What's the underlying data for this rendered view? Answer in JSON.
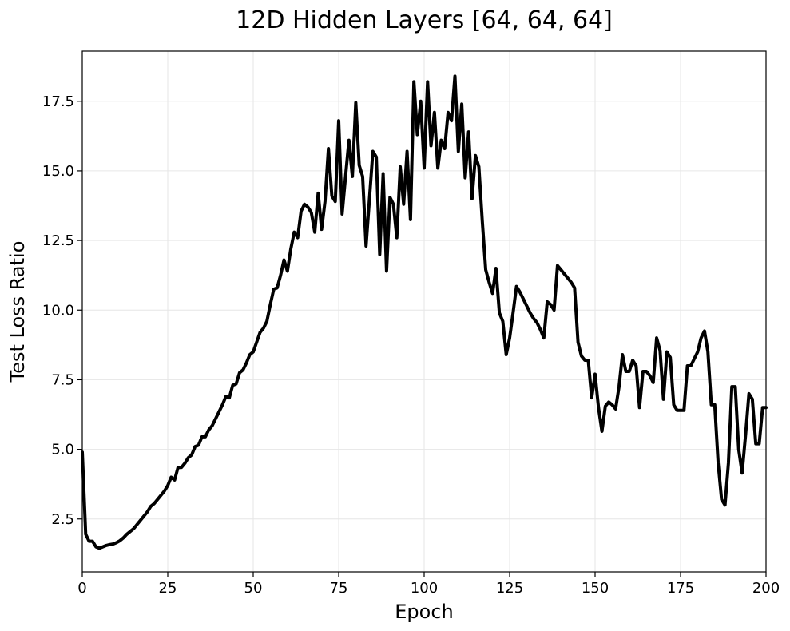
{
  "chart_data": {
    "type": "line",
    "title": "12D Hidden Layers [64, 64, 64]",
    "xlabel": "Epoch",
    "ylabel": "Test Loss Ratio",
    "xlim": [
      0,
      200
    ],
    "ylim": [
      0.6,
      19.3
    ],
    "xticks": [
      0,
      25,
      50,
      75,
      100,
      125,
      150,
      175,
      200
    ],
    "xtick_labels": [
      "0",
      "25",
      "50",
      "75",
      "100",
      "125",
      "150",
      "175",
      "200"
    ],
    "yticks": [
      2.5,
      5.0,
      7.5,
      10.0,
      12.5,
      15.0,
      17.5
    ],
    "ytick_labels": [
      "2.5",
      "5.0",
      "7.5",
      "10.0",
      "12.5",
      "15.0",
      "17.5"
    ],
    "grid": true,
    "line_color": "#000000",
    "series": [
      {
        "x": [
          0,
          1,
          2,
          3,
          4,
          5,
          6,
          7,
          8,
          9,
          10,
          11,
          12,
          13,
          14,
          15,
          16,
          17,
          18,
          19,
          20,
          21,
          22,
          23,
          24,
          25,
          26,
          27,
          28,
          29,
          30,
          31,
          32,
          33,
          34,
          35,
          36,
          37,
          38,
          39,
          40,
          41,
          42,
          43,
          44,
          45,
          46,
          47,
          48,
          49,
          50,
          51,
          52,
          53,
          54,
          55,
          56,
          57,
          58,
          59,
          60,
          61,
          62,
          63,
          64,
          65,
          66,
          67,
          68,
          69,
          70,
          71,
          72,
          73,
          74,
          75,
          76,
          77,
          78,
          79,
          80,
          81,
          82,
          83,
          84,
          85,
          86,
          87,
          88,
          89,
          90,
          91,
          92,
          93,
          94,
          95,
          96,
          97,
          98,
          99,
          100,
          101,
          102,
          103,
          104,
          105,
          106,
          107,
          108,
          109,
          110,
          111,
          112,
          113,
          114,
          115,
          116,
          117,
          118,
          119,
          120,
          121,
          122,
          123,
          124,
          125,
          126,
          127,
          128,
          129,
          130,
          131,
          132,
          133,
          134,
          135,
          136,
          137,
          138,
          139,
          140,
          141,
          142,
          143,
          144,
          145,
          146,
          147,
          148,
          149,
          150,
          151,
          152,
          153,
          154,
          155,
          156,
          157,
          158,
          159,
          160,
          161,
          162,
          163,
          164,
          165,
          166,
          167,
          168,
          169,
          170,
          171,
          172,
          173,
          174,
          175,
          176,
          177,
          178,
          179,
          180,
          181,
          182,
          183,
          184,
          185,
          186,
          187,
          188,
          189,
          190,
          191,
          192,
          193,
          194,
          195,
          196,
          197,
          198,
          199,
          200
        ],
        "y": [
          4.9,
          1.95,
          1.7,
          1.7,
          1.5,
          1.45,
          1.5,
          1.55,
          1.58,
          1.6,
          1.65,
          1.72,
          1.82,
          1.95,
          2.05,
          2.15,
          2.3,
          2.45,
          2.6,
          2.75,
          2.95,
          3.05,
          3.2,
          3.35,
          3.5,
          3.7,
          4.0,
          3.9,
          4.35,
          4.35,
          4.5,
          4.7,
          4.8,
          5.1,
          5.15,
          5.45,
          5.45,
          5.7,
          5.85,
          6.1,
          6.35,
          6.6,
          6.9,
          6.85,
          7.3,
          7.35,
          7.75,
          7.85,
          8.1,
          8.4,
          8.5,
          8.85,
          9.2,
          9.35,
          9.6,
          10.2,
          10.75,
          10.8,
          11.25,
          11.8,
          11.4,
          12.2,
          12.8,
          12.6,
          13.55,
          13.8,
          13.7,
          13.5,
          12.8,
          14.2,
          12.9,
          13.9,
          15.8,
          14.1,
          13.9,
          16.8,
          13.45,
          14.8,
          16.1,
          14.8,
          17.45,
          15.2,
          14.8,
          12.3,
          14.0,
          15.7,
          15.5,
          12.0,
          14.9,
          11.4,
          14.05,
          13.8,
          12.6,
          15.15,
          13.8,
          15.7,
          13.25,
          18.2,
          16.3,
          17.5,
          15.1,
          18.2,
          15.9,
          17.1,
          15.1,
          16.1,
          15.8,
          17.1,
          16.8,
          18.4,
          15.7,
          17.4,
          14.75,
          16.4,
          14.0,
          15.55,
          15.15,
          13.2,
          11.45,
          11.0,
          10.6,
          11.5,
          9.9,
          9.6,
          8.4,
          9.0,
          9.9,
          10.85,
          10.65,
          10.4,
          10.15,
          9.9,
          9.7,
          9.55,
          9.3,
          9.0,
          10.3,
          10.2,
          10.0,
          11.6,
          11.45,
          11.3,
          11.15,
          11.0,
          10.8,
          8.85,
          8.35,
          8.2,
          8.2,
          6.85,
          7.7,
          6.5,
          5.65,
          6.55,
          6.7,
          6.6,
          6.45,
          7.25,
          8.4,
          7.8,
          7.8,
          8.2,
          8.0,
          6.5,
          7.8,
          7.8,
          7.65,
          7.4,
          9.0,
          8.55,
          6.8,
          8.5,
          8.3,
          6.6,
          6.4,
          6.4,
          6.4,
          8.0,
          8.0,
          8.25,
          8.5,
          9.0,
          9.25,
          8.5,
          6.6,
          6.6,
          4.5,
          3.2,
          3.0,
          4.5,
          7.25,
          7.25,
          5.0,
          4.15,
          5.5,
          7.0,
          6.8,
          5.2,
          5.2,
          6.5,
          6.5
        ]
      }
    ]
  }
}
